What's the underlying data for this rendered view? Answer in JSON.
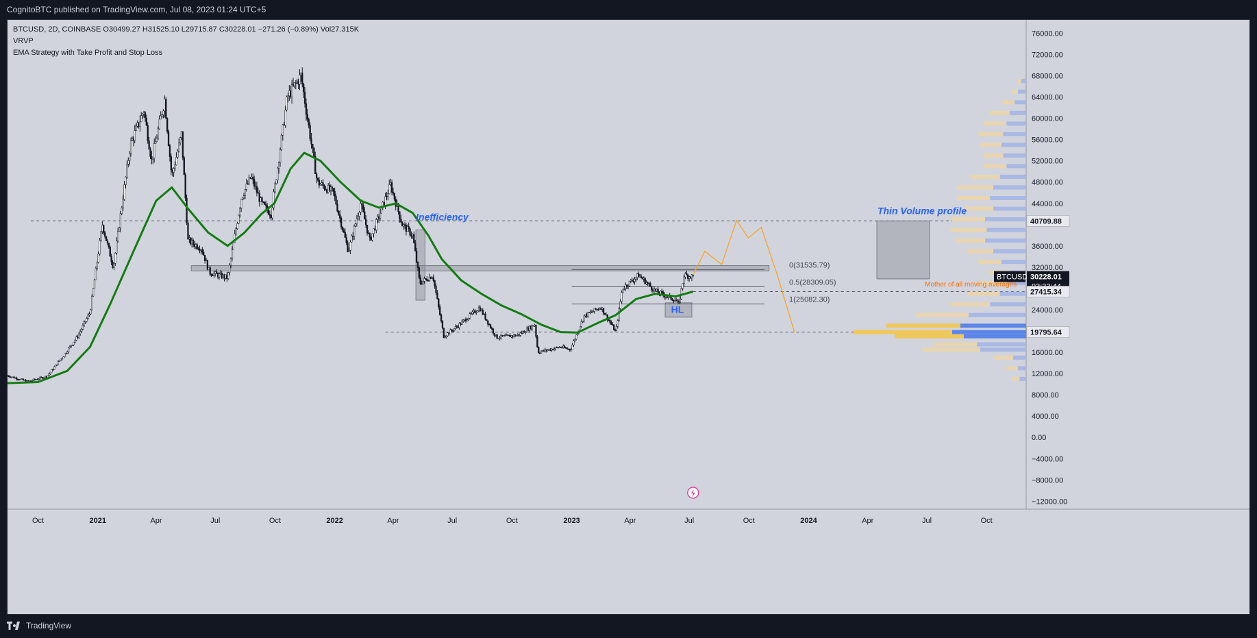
{
  "header": {
    "publish_line": "CognitoBTC published on TradingView.com, Jul 08, 2023 01:24 UTC+5"
  },
  "legend": {
    "line1": "BTCUSD, 2D, COINBASE  O30499.27  H31525.10  L29715.87  C30228.01  −271.26 (−0.89%)  Vol27.315K",
    "line2": "VRVP",
    "line3": "EMA Strategy with Take Profit and Stop Loss"
  },
  "footer": {
    "brand": "TradingView"
  },
  "colors": {
    "background": "#d1d4dc",
    "ema": "#137c12",
    "projection": "#f5a623",
    "annotation_blue": "#2962ff",
    "annotation_orange": "#ff6d00",
    "vp_up": "#f0c85a",
    "vp_down": "#5b85e8",
    "vp_up_faint": "#e8d5b0",
    "vp_down_faint": "#a9b8e4",
    "price_label_dark": "#131722"
  },
  "chart_data": {
    "type": "candlestick",
    "symbol": "BTCUSD",
    "interval": "2D",
    "exchange": "COINBASE",
    "ohlc_last": {
      "open": 30499.27,
      "high": 31525.1,
      "low": 29715.87,
      "close": 30228.01,
      "change": -271.26,
      "change_pct": -0.89,
      "volume": "27.315K"
    },
    "x_labels": [
      {
        "date": "2020-10-01",
        "label": "Oct",
        "bold": false
      },
      {
        "date": "2021-01-01",
        "label": "2021",
        "bold": true
      },
      {
        "date": "2021-04-01",
        "label": "Apr",
        "bold": false
      },
      {
        "date": "2021-07-01",
        "label": "Jul",
        "bold": false
      },
      {
        "date": "2021-10-01",
        "label": "Oct",
        "bold": false
      },
      {
        "date": "2022-01-01",
        "label": "2022",
        "bold": true
      },
      {
        "date": "2022-04-01",
        "label": "Apr",
        "bold": false
      },
      {
        "date": "2022-07-01",
        "label": "Jul",
        "bold": false
      },
      {
        "date": "2022-10-01",
        "label": "Oct",
        "bold": false
      },
      {
        "date": "2023-01-01",
        "label": "2023",
        "bold": true
      },
      {
        "date": "2023-04-01",
        "label": "Apr",
        "bold": false
      },
      {
        "date": "2023-07-01",
        "label": "Jul",
        "bold": false
      },
      {
        "date": "2023-10-01",
        "label": "Oct",
        "bold": false
      },
      {
        "date": "2024-01-01",
        "label": "2024",
        "bold": true
      },
      {
        "date": "2024-04-01",
        "label": "Apr",
        "bold": false
      },
      {
        "date": "2024-07-01",
        "label": "Jul",
        "bold": false
      },
      {
        "date": "2024-10-01",
        "label": "Oct",
        "bold": false
      }
    ],
    "x_range": [
      "2020-08-15",
      "2024-12-01"
    ],
    "y_range": [
      -13500,
      78500
    ],
    "y_ticks": [
      {
        "value": 76000,
        "label": "76000.00"
      },
      {
        "value": 72000,
        "label": "72000.00"
      },
      {
        "value": 68000,
        "label": "68000.00"
      },
      {
        "value": 64000,
        "label": "64000.00"
      },
      {
        "value": 60000,
        "label": "60000.00"
      },
      {
        "value": 56000,
        "label": "56000.00"
      },
      {
        "value": 52000,
        "label": "52000.00"
      },
      {
        "value": 48000,
        "label": "48000.00"
      },
      {
        "value": 44000,
        "label": "44000.00"
      },
      {
        "value": 36000,
        "label": "36000.00"
      },
      {
        "value": 32000,
        "label": "32000.00"
      },
      {
        "value": 24000,
        "label": "24000.00"
      },
      {
        "value": 16000,
        "label": "16000.00"
      },
      {
        "value": 12000,
        "label": "12000.00"
      },
      {
        "value": 8000,
        "label": "8000.00"
      },
      {
        "value": 4000,
        "label": "4000.00"
      },
      {
        "value": 0,
        "label": "0.00"
      },
      {
        "value": -4000,
        "label": "−4000.00"
      },
      {
        "value": -8000,
        "label": "−8000.00"
      },
      {
        "value": -12000,
        "label": "−12000.00"
      }
    ],
    "price_path": [
      [
        "2020-08-15",
        11600
      ],
      [
        "2020-09-15",
        10500
      ],
      [
        "2020-10-15",
        11500
      ],
      [
        "2020-11-10",
        15500
      ],
      [
        "2020-12-01",
        19000
      ],
      [
        "2020-12-20",
        23500
      ],
      [
        "2021-01-08",
        40000
      ],
      [
        "2021-01-25",
        32000
      ],
      [
        "2021-02-20",
        55000
      ],
      [
        "2021-03-13",
        61500
      ],
      [
        "2021-03-25",
        52000
      ],
      [
        "2021-04-14",
        63500
      ],
      [
        "2021-04-25",
        49000
      ],
      [
        "2021-05-10",
        57000
      ],
      [
        "2021-05-20",
        37000
      ],
      [
        "2021-06-10",
        35500
      ],
      [
        "2021-06-22",
        31000
      ],
      [
        "2021-07-20",
        30000
      ],
      [
        "2021-08-10",
        45000
      ],
      [
        "2021-08-25",
        49000
      ],
      [
        "2021-09-10",
        44000
      ],
      [
        "2021-09-25",
        42000
      ],
      [
        "2021-10-20",
        64000
      ],
      [
        "2021-11-10",
        68000
      ],
      [
        "2021-11-25",
        56000
      ],
      [
        "2021-12-05",
        48000
      ],
      [
        "2021-12-30",
        46000
      ],
      [
        "2022-01-22",
        35000
      ],
      [
        "2022-02-10",
        44000
      ],
      [
        "2022-02-24",
        37000
      ],
      [
        "2022-03-28",
        47500
      ],
      [
        "2022-04-15",
        40000
      ],
      [
        "2022-05-01",
        38000
      ],
      [
        "2022-05-12",
        29000
      ],
      [
        "2022-06-01",
        30500
      ],
      [
        "2022-06-18",
        19000
      ],
      [
        "2022-07-10",
        21000
      ],
      [
        "2022-08-12",
        24400
      ],
      [
        "2022-09-07",
        18800
      ],
      [
        "2022-10-10",
        19200
      ],
      [
        "2022-11-05",
        21200
      ],
      [
        "2022-11-10",
        16000
      ],
      [
        "2022-12-15",
        17000
      ],
      [
        "2022-12-30",
        16500
      ],
      [
        "2023-01-20",
        22800
      ],
      [
        "2023-02-15",
        24500
      ],
      [
        "2023-03-10",
        19800
      ],
      [
        "2023-03-20",
        28000
      ],
      [
        "2023-04-14",
        30500
      ],
      [
        "2023-05-10",
        27500
      ],
      [
        "2023-06-10",
        25800
      ],
      [
        "2023-06-15",
        25000
      ],
      [
        "2023-06-23",
        30500
      ],
      [
        "2023-07-07",
        30228
      ]
    ],
    "ema_path": [
      [
        "2020-08-15",
        10200
      ],
      [
        "2020-10-01",
        10400
      ],
      [
        "2020-11-15",
        12500
      ],
      [
        "2020-12-20",
        17000
      ],
      [
        "2021-01-20",
        25000
      ],
      [
        "2021-02-25",
        35000
      ],
      [
        "2021-04-01",
        44500
      ],
      [
        "2021-04-25",
        47000
      ],
      [
        "2021-05-20",
        43000
      ],
      [
        "2021-06-20",
        38500
      ],
      [
        "2021-07-20",
        36000
      ],
      [
        "2021-08-15",
        38500
      ],
      [
        "2021-09-10",
        42000
      ],
      [
        "2021-09-30",
        44000
      ],
      [
        "2021-10-25",
        50500
      ],
      [
        "2021-11-15",
        53500
      ],
      [
        "2021-12-10",
        52000
      ],
      [
        "2022-01-10",
        48000
      ],
      [
        "2022-02-10",
        44500
      ],
      [
        "2022-03-10",
        43200
      ],
      [
        "2022-04-05",
        44000
      ],
      [
        "2022-05-01",
        42200
      ],
      [
        "2022-05-25",
        38000
      ],
      [
        "2022-06-15",
        33500
      ],
      [
        "2022-07-15",
        29500
      ],
      [
        "2022-08-15",
        27000
      ],
      [
        "2022-09-15",
        24800
      ],
      [
        "2022-10-15",
        23200
      ],
      [
        "2022-11-15",
        21200
      ],
      [
        "2022-12-15",
        19800
      ],
      [
        "2023-01-10",
        19700
      ],
      [
        "2023-02-10",
        21500
      ],
      [
        "2023-03-10",
        23000
      ],
      [
        "2023-04-10",
        26000
      ],
      [
        "2023-05-10",
        27000
      ],
      [
        "2023-06-10",
        26500
      ],
      [
        "2023-07-07",
        27415
      ]
    ],
    "projection_path": [
      [
        "2023-07-07",
        30500
      ],
      [
        "2023-07-25",
        35000
      ],
      [
        "2023-08-20",
        32500
      ],
      [
        "2023-09-12",
        40800
      ],
      [
        "2023-09-30",
        37500
      ],
      [
        "2023-10-20",
        39500
      ],
      [
        "2023-11-15",
        30000
      ],
      [
        "2023-12-10",
        19800
      ]
    ],
    "horizontal_lines": [
      {
        "value": 40709.88,
        "from": "2020-09-20",
        "to": "2024-12-01"
      },
      {
        "value": 27415.34,
        "from": "2023-07-07",
        "to": "2024-12-01"
      },
      {
        "value": 19795.64,
        "from": "2022-03-20",
        "to": "2024-12-01"
      }
    ],
    "price_labels": [
      {
        "value": 40709.88,
        "label": "40709.88",
        "style": "light"
      },
      {
        "value": 30228.01,
        "label": "30228.01",
        "symbol": "BTCUSD",
        "countdown": "03:33:44",
        "style": "dark"
      },
      {
        "value": 27415.34,
        "label": "27415.34",
        "style": "light"
      },
      {
        "value": 19795.64,
        "label": "19795.64",
        "style": "light"
      }
    ],
    "fibonacci": [
      {
        "value": 31535.79,
        "label": "0(31535.79)"
      },
      {
        "value": 28309.05,
        "label": "0.5(28309.05)"
      },
      {
        "value": 25082.3,
        "label": "1(25082.30)"
      }
    ],
    "fib_range": [
      "2023-01-01",
      "2023-10-25"
    ],
    "boxes": [
      {
        "from": "2021-05-25",
        "to": "2023-11-01",
        "top": 32300,
        "bottom": 31300
      },
      {
        "from": "2022-05-06",
        "to": "2022-05-20",
        "top": 39000,
        "bottom": 25800
      },
      {
        "from": "2023-05-25",
        "to": "2023-07-05",
        "top": 25300,
        "bottom": 22600
      },
      {
        "from": "2024-04-15",
        "to": "2024-07-05",
        "top": 40700,
        "bottom": 29800
      }
    ],
    "annotations": [
      {
        "text": "Inefficiency",
        "date": "2022-05-06",
        "value": 40800,
        "color": "blue",
        "italic": true,
        "bold": true
      },
      {
        "text": "HL",
        "date": "2023-06-03",
        "value": 23400,
        "color": "blue",
        "italic": false,
        "bold": true
      },
      {
        "text": "Thin Volume profile",
        "date": "2024-04-16",
        "value": 42000,
        "color": "blue",
        "italic": true,
        "bold": true
      },
      {
        "text": "Mother of all moving averages",
        "date": "2024-06-28",
        "value": 28400,
        "color": "orange",
        "italic": false,
        "bold": false
      }
    ],
    "volume_profile": {
      "note": "VRVP horizontal histogram on right edge; widths are relative volume 0-1",
      "rows": [
        {
          "price": 67000,
          "up": 0.02,
          "down": 0.03
        },
        {
          "price": 65000,
          "up": 0.04,
          "down": 0.05
        },
        {
          "price": 63000,
          "up": 0.08,
          "down": 0.07
        },
        {
          "price": 61000,
          "up": 0.12,
          "down": 0.1
        },
        {
          "price": 59000,
          "up": 0.14,
          "down": 0.12
        },
        {
          "price": 57000,
          "up": 0.15,
          "down": 0.14
        },
        {
          "price": 55000,
          "up": 0.13,
          "down": 0.15
        },
        {
          "price": 53000,
          "up": 0.12,
          "down": 0.14
        },
        {
          "price": 51000,
          "up": 0.14,
          "down": 0.12
        },
        {
          "price": 49000,
          "up": 0.18,
          "down": 0.16
        },
        {
          "price": 47000,
          "up": 0.22,
          "down": 0.2
        },
        {
          "price": 45000,
          "up": 0.2,
          "down": 0.22
        },
        {
          "price": 43000,
          "up": 0.18,
          "down": 0.2
        },
        {
          "price": 41000,
          "up": 0.2,
          "down": 0.25
        },
        {
          "price": 39000,
          "up": 0.22,
          "down": 0.24
        },
        {
          "price": 37000,
          "up": 0.18,
          "down": 0.25
        },
        {
          "price": 35000,
          "up": 0.16,
          "down": 0.2
        },
        {
          "price": 33000,
          "up": 0.14,
          "down": 0.15
        },
        {
          "price": 31000,
          "up": 0.12,
          "down": 0.1
        },
        {
          "price": 29000,
          "up": 0.16,
          "down": 0.12
        },
        {
          "price": 27000,
          "up": 0.2,
          "down": 0.16
        },
        {
          "price": 25000,
          "up": 0.24,
          "down": 0.22
        },
        {
          "price": 23000,
          "up": 0.32,
          "down": 0.35
        },
        {
          "price": 21000,
          "up": 0.45,
          "down": 0.4
        },
        {
          "price": 19800,
          "up": 0.6,
          "down": 0.45
        },
        {
          "price": 19000,
          "up": 0.42,
          "down": 0.38
        },
        {
          "price": 17500,
          "up": 0.26,
          "down": 0.3
        },
        {
          "price": 16500,
          "up": 0.35,
          "down": 0.28
        },
        {
          "price": 15000,
          "up": 0.12,
          "down": 0.08
        },
        {
          "price": 13000,
          "up": 0.07,
          "down": 0.05
        },
        {
          "price": 11000,
          "up": 0.05,
          "down": 0.04
        }
      ]
    },
    "icon": "lightning-icon"
  }
}
